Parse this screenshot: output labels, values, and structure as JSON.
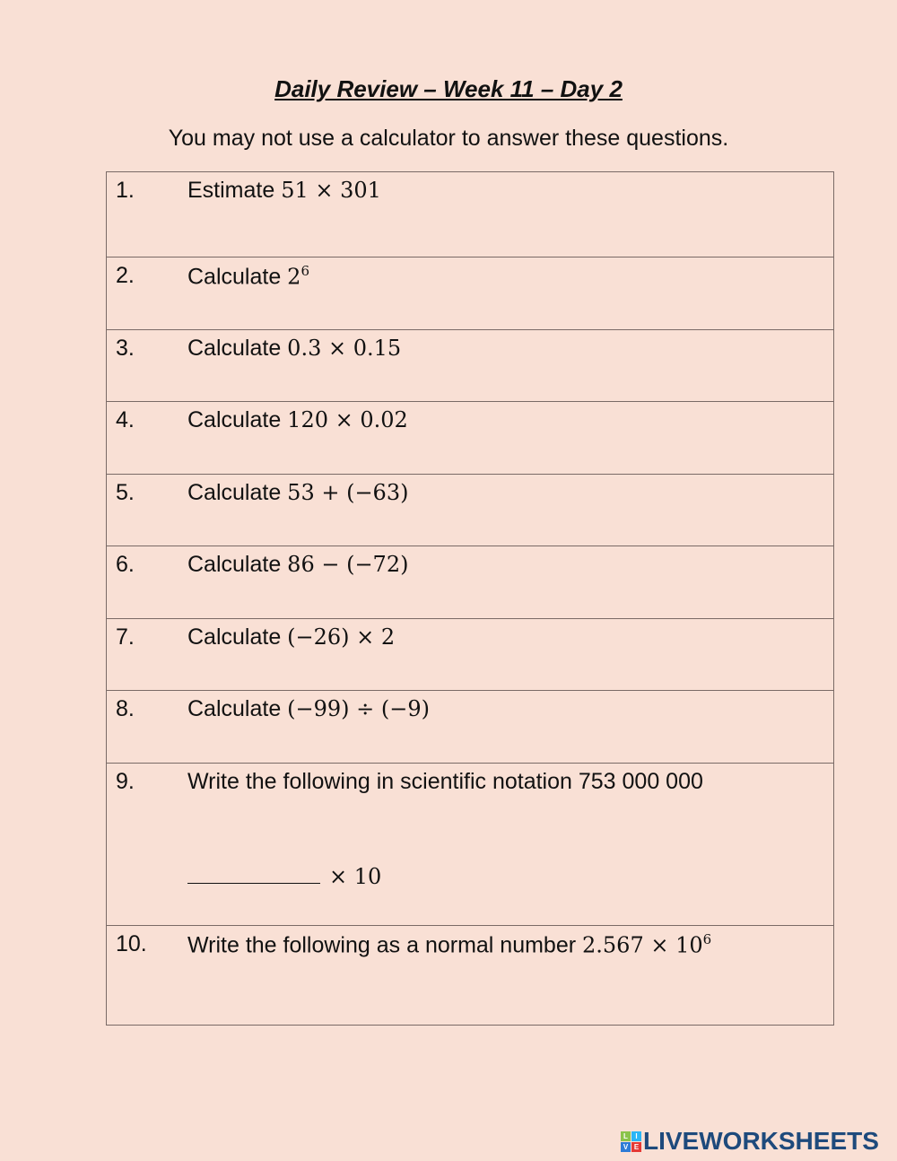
{
  "title": "Daily Review – Week 11 – Day 2",
  "instructions": "You may not use a calculator to answer these questions.",
  "questions": [
    {
      "num": "1.",
      "text": "Estimate ",
      "math": "51 × 301"
    },
    {
      "num": "2.",
      "text": "Calculate ",
      "math": "2",
      "sup": "6"
    },
    {
      "num": "3.",
      "text": "Calculate ",
      "math": "0.3 × 0.15"
    },
    {
      "num": "4.",
      "text": "Calculate ",
      "math": "120 × 0.02"
    },
    {
      "num": "5.",
      "text": "Calculate ",
      "math": "53 + (−63)"
    },
    {
      "num": "6.",
      "text": "Calculate ",
      "math": "86 − (−72)"
    },
    {
      "num": "7.",
      "text": "Calculate ",
      "math": "(−26) × 2"
    },
    {
      "num": "8.",
      "text": "Calculate ",
      "math": "(−99) ÷ (−9)"
    },
    {
      "num": "9.",
      "text": "Write the following in scientific notation 753 000 000",
      "answer_math": "× 10"
    },
    {
      "num": "10.",
      "text": "Write the following as a normal number  ",
      "math": "2.567 × 10",
      "sup": "6"
    }
  ],
  "logo": {
    "text": "LIVEWORKSHEETS",
    "tiles": [
      "L",
      "I",
      "V",
      "E"
    ],
    "color": "#1e4a7c"
  }
}
